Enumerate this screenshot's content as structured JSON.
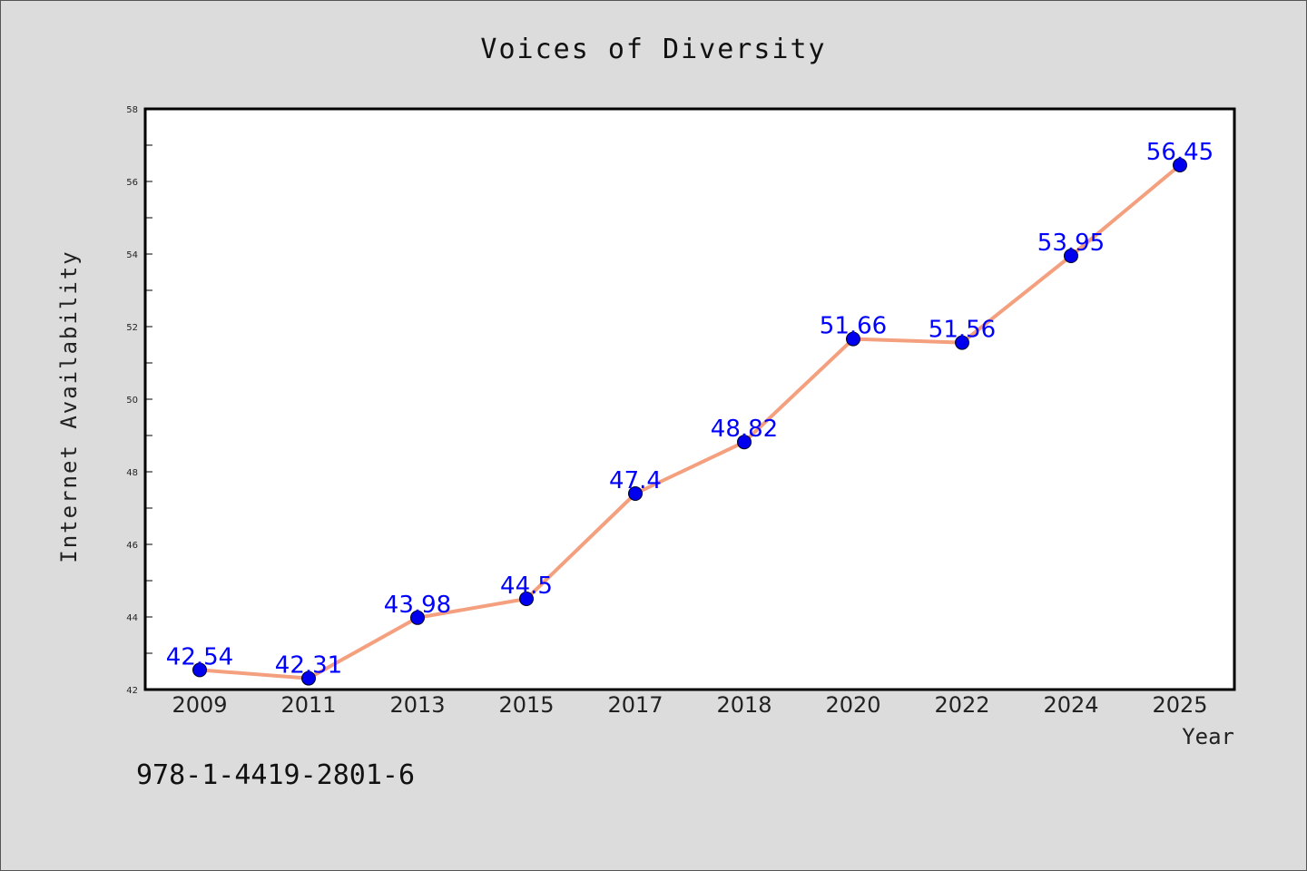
{
  "colors": {
    "background": "#dcdcdc",
    "plot_background": "#ffffff",
    "line": "#f4a07e",
    "marker": "#0000ee",
    "data_label": "#0000ff"
  },
  "footer": {
    "isbn": "978-1-4419-2801-6"
  },
  "chart_data": {
    "type": "line",
    "title": "Voices of Diversity",
    "xlabel": "Year",
    "ylabel": "Internet Availability",
    "categories": [
      "2009",
      "2011",
      "2013",
      "2015",
      "2017",
      "2018",
      "2020",
      "2022",
      "2024",
      "2025"
    ],
    "series": [
      {
        "values": [
          42.54,
          42.31,
          43.98,
          44.5,
          47.4,
          48.82,
          51.66,
          51.56,
          53.95,
          56.45
        ]
      }
    ],
    "data_labels": [
      "42.54",
      "42.31",
      "43.98",
      "44.5",
      "47.4",
      "48.82",
      "51.66",
      "51.56",
      "53.95",
      "56.45"
    ],
    "ylim": [
      42,
      58
    ],
    "yticks": [
      "42",
      "44",
      "46",
      "48",
      "50",
      "52",
      "54",
      "56",
      "58"
    ],
    "grid": false,
    "legend": "none"
  }
}
